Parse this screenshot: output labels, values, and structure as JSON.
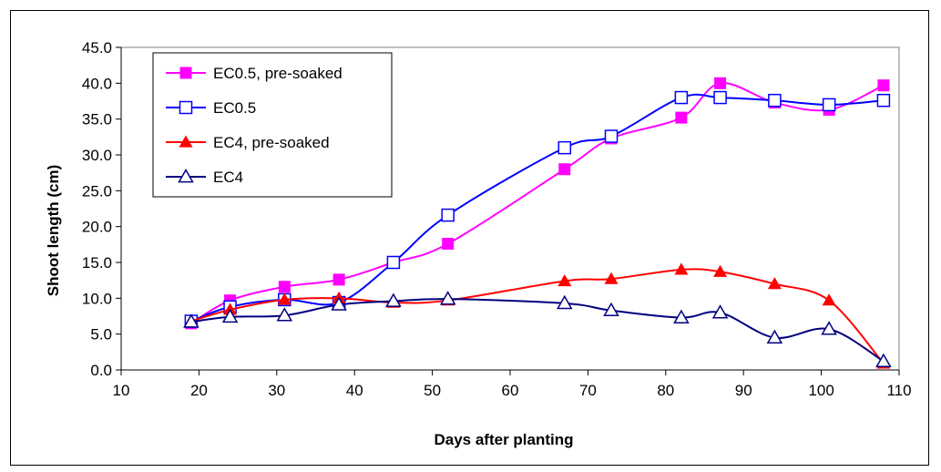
{
  "chart_data": {
    "type": "line",
    "xlabel": "Days after planting",
    "ylabel": "Shoot length (cm)",
    "xlim": [
      10,
      110
    ],
    "ylim": [
      0,
      45
    ],
    "x_ticks": [
      "10",
      "20",
      "30",
      "40",
      "50",
      "60",
      "70",
      "80",
      "90",
      "100",
      "110"
    ],
    "y_ticks": [
      "0.0",
      "5.0",
      "10.0",
      "15.0",
      "20.0",
      "25.0",
      "30.0",
      "35.0",
      "40.0",
      "45.0"
    ],
    "grid": false,
    "legend_position": "top-left",
    "series": [
      {
        "name": "EC0.5, pre-soaked",
        "color": "#ff00ff",
        "marker": "square-filled",
        "points": [
          [
            19,
            6.5
          ],
          [
            24,
            9.7
          ],
          [
            31,
            11.6
          ],
          [
            38,
            12.6
          ],
          [
            45,
            15.0
          ],
          [
            52,
            17.6
          ],
          [
            67,
            28.0
          ],
          [
            73,
            32.3
          ],
          [
            82,
            35.2
          ],
          [
            87,
            40.0
          ],
          [
            94,
            37.3
          ],
          [
            101,
            36.3
          ],
          [
            108,
            39.7
          ]
        ]
      },
      {
        "name": "EC0.5",
        "color": "#0000ff",
        "marker": "square-open",
        "points": [
          [
            19,
            6.8
          ],
          [
            24,
            8.8
          ],
          [
            31,
            9.8
          ],
          [
            38,
            9.4
          ],
          [
            45,
            15.0
          ],
          [
            52,
            21.6
          ],
          [
            67,
            31.0
          ],
          [
            73,
            32.6
          ],
          [
            82,
            38.0
          ],
          [
            87,
            38.0
          ],
          [
            94,
            37.6
          ],
          [
            101,
            37.0
          ],
          [
            108,
            37.6
          ]
        ]
      },
      {
        "name": "EC4, pre-soaked",
        "color": "#ff0000",
        "marker": "triangle-filled",
        "points": [
          [
            19,
            6.8
          ],
          [
            24,
            8.4
          ],
          [
            31,
            9.8
          ],
          [
            38,
            10.0
          ],
          [
            45,
            9.4
          ],
          [
            52,
            9.7
          ],
          [
            67,
            12.4
          ],
          [
            73,
            12.7
          ],
          [
            82,
            14.0
          ],
          [
            87,
            13.7
          ],
          [
            94,
            12.0
          ],
          [
            101,
            9.7
          ],
          [
            108,
            0.9
          ]
        ]
      },
      {
        "name": "EC4",
        "color": "#000080",
        "marker": "triangle-open",
        "points": [
          [
            19,
            6.7
          ],
          [
            24,
            7.4
          ],
          [
            31,
            7.6
          ],
          [
            38,
            9.1
          ],
          [
            45,
            9.6
          ],
          [
            52,
            9.9
          ],
          [
            67,
            9.3
          ],
          [
            73,
            8.3
          ],
          [
            82,
            7.3
          ],
          [
            87,
            8.0
          ],
          [
            94,
            4.5
          ],
          [
            101,
            5.7
          ],
          [
            108,
            1.2
          ]
        ]
      }
    ]
  }
}
